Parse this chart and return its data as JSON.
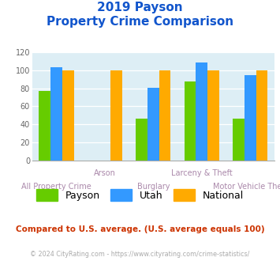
{
  "title_line1": "2019 Payson",
  "title_line2": "Property Crime Comparison",
  "categories": [
    "All Property Crime",
    "Arson",
    "Burglary",
    "Larceny & Theft",
    "Motor Vehicle Theft"
  ],
  "x_labels_top": [
    "",
    "Arson",
    "",
    "Larceny & Theft",
    ""
  ],
  "x_labels_bottom": [
    "All Property Crime",
    "",
    "Burglary",
    "",
    "Motor Vehicle Theft"
  ],
  "payson_values": [
    77,
    0,
    46,
    88,
    46
  ],
  "utah_values": [
    103,
    0,
    81,
    109,
    95
  ],
  "national_values": [
    100,
    100,
    100,
    100,
    100
  ],
  "payson_color": "#66cc00",
  "utah_color": "#3399ff",
  "national_color": "#ffaa00",
  "title_color": "#1155cc",
  "xlabel_color": "#aa88aa",
  "bg_color": "#ffffff",
  "plot_bg": "#ddeef5",
  "ylim": [
    0,
    120
  ],
  "yticks": [
    0,
    20,
    40,
    60,
    80,
    100,
    120
  ],
  "note_text": "Compared to U.S. average. (U.S. average equals 100)",
  "copyright_text": "© 2024 CityRating.com - https://www.cityrating.com/crime-statistics/",
  "note_color": "#cc3300",
  "copyright_color": "#aaaaaa",
  "legend_labels": [
    "Payson",
    "Utah",
    "National"
  ]
}
